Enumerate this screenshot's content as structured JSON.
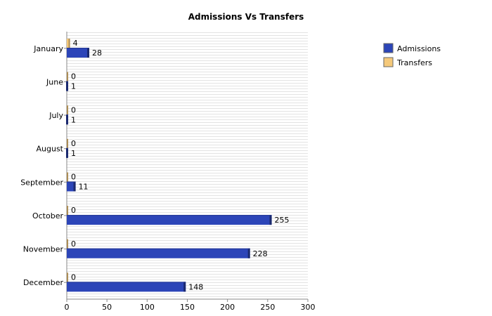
{
  "chart_data": {
    "type": "bar",
    "orientation": "horizontal",
    "title": "Admissions Vs Transfers",
    "xlabel": "",
    "ylabel": "",
    "categories": [
      "January",
      "June",
      "July",
      "August",
      "September",
      "October",
      "November",
      "December"
    ],
    "series": [
      {
        "name": "Transfers",
        "values": [
          4,
          0,
          0,
          0,
          0,
          0,
          0,
          0
        ],
        "color": "#f5c97a"
      },
      {
        "name": "Admissions",
        "values": [
          28,
          1,
          1,
          1,
          11,
          255,
          228,
          148
        ],
        "color": "#2c45b8"
      }
    ],
    "xlim": [
      0,
      300
    ],
    "xticks": [
      0,
      50,
      100,
      150,
      200,
      250,
      300
    ],
    "grid": true,
    "legend_position": "top-right",
    "legend": [
      "Admissions",
      "Transfers"
    ]
  }
}
